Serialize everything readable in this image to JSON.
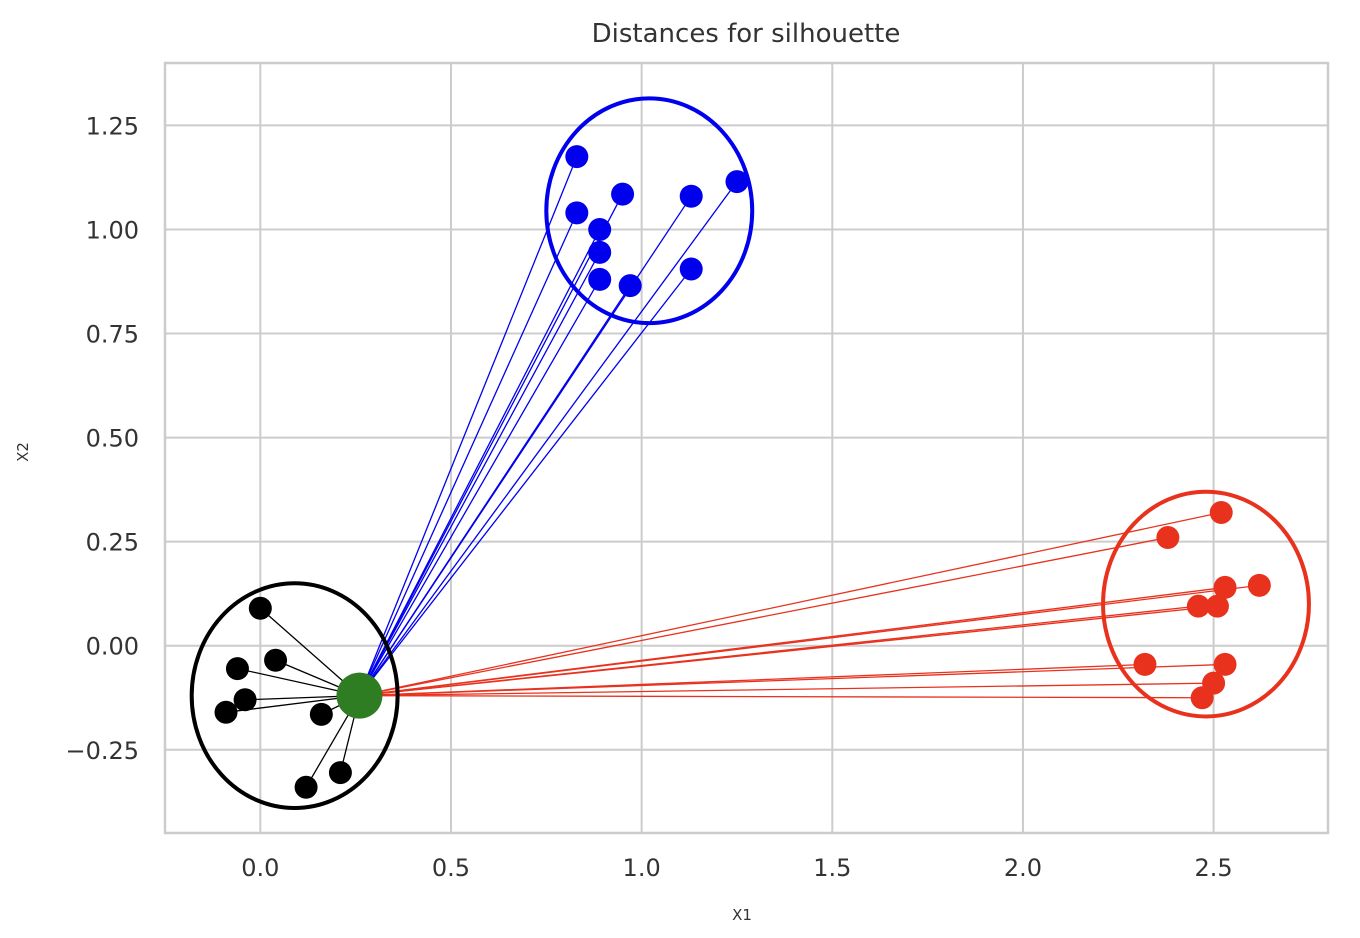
{
  "chart_data": {
    "type": "scatter",
    "title": "Distances for silhouette",
    "xlabel": "X1",
    "ylabel": "X2",
    "xlim": [
      -0.25,
      2.8
    ],
    "ylim": [
      -0.45,
      1.4
    ],
    "grid": true,
    "xticks": [
      0.0,
      0.5,
      1.0,
      1.5,
      2.0,
      2.5
    ],
    "xtick_labels": [
      "0.0",
      "0.5",
      "1.0",
      "1.5",
      "2.0",
      "2.5"
    ],
    "yticks": [
      -0.25,
      0.0,
      0.25,
      0.5,
      0.75,
      1.0,
      1.25
    ],
    "ytick_labels": [
      "−0.25",
      "0.00",
      "0.25",
      "0.50",
      "0.75",
      "1.00",
      "1.25"
    ],
    "reference_point": {
      "x": 0.26,
      "y": -0.12,
      "color": "#2e7d22"
    },
    "series": [
      {
        "color": "#000000",
        "circle": {
          "cx": 0.09,
          "cy": -0.12,
          "rx": 0.27,
          "ry": 0.27
        },
        "points": [
          {
            "x": 0.0,
            "y": 0.09
          },
          {
            "x": -0.06,
            "y": -0.055
          },
          {
            "x": 0.04,
            "y": -0.035
          },
          {
            "x": -0.04,
            "y": -0.13
          },
          {
            "x": -0.09,
            "y": -0.16
          },
          {
            "x": 0.16,
            "y": -0.165
          },
          {
            "x": 0.21,
            "y": -0.305
          },
          {
            "x": 0.12,
            "y": -0.34
          }
        ]
      },
      {
        "color": "#0000ee",
        "circle": {
          "cx": 1.02,
          "cy": 1.045,
          "rx": 0.27,
          "ry": 0.27
        },
        "points": [
          {
            "x": 0.83,
            "y": 1.175
          },
          {
            "x": 0.95,
            "y": 1.085
          },
          {
            "x": 1.13,
            "y": 1.08
          },
          {
            "x": 1.25,
            "y": 1.115
          },
          {
            "x": 0.83,
            "y": 1.04
          },
          {
            "x": 0.89,
            "y": 1.0
          },
          {
            "x": 0.89,
            "y": 0.945
          },
          {
            "x": 0.89,
            "y": 0.88
          },
          {
            "x": 0.97,
            "y": 0.865
          },
          {
            "x": 1.13,
            "y": 0.905
          }
        ]
      },
      {
        "color": "#e8321e",
        "circle": {
          "cx": 2.48,
          "cy": 0.1,
          "rx": 0.27,
          "ry": 0.27
        },
        "points": [
          {
            "x": 2.52,
            "y": 0.32
          },
          {
            "x": 2.38,
            "y": 0.26
          },
          {
            "x": 2.62,
            "y": 0.145
          },
          {
            "x": 2.53,
            "y": 0.14
          },
          {
            "x": 2.46,
            "y": 0.095
          },
          {
            "x": 2.51,
            "y": 0.095
          },
          {
            "x": 2.32,
            "y": -0.045
          },
          {
            "x": 2.53,
            "y": -0.045
          },
          {
            "x": 2.5,
            "y": -0.09
          },
          {
            "x": 2.47,
            "y": -0.125
          }
        ]
      }
    ]
  }
}
